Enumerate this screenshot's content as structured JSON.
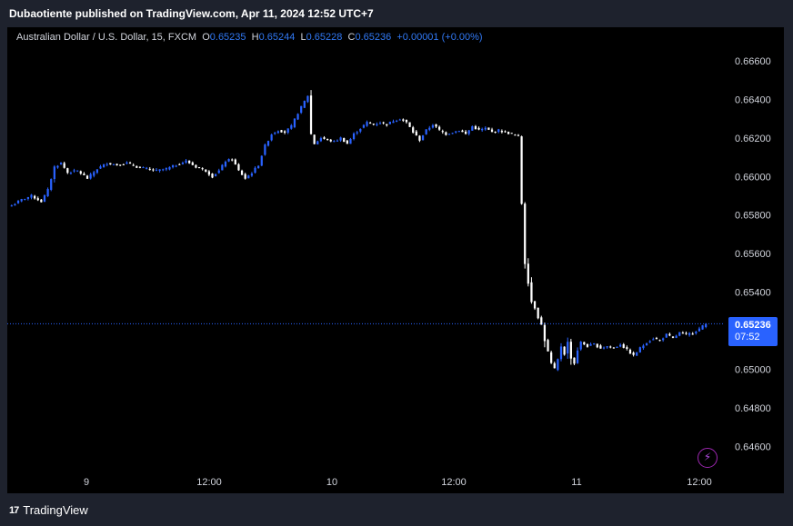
{
  "header": {
    "published_line": "Dubaotiente published on TradingView.com, Apr 11, 2024 12:52 UTC+7"
  },
  "legend": {
    "symbol": "Australian Dollar / U.S. Dollar, 15, FXCM",
    "o_label": "O",
    "o_value": "0.65235",
    "h_label": "H",
    "h_value": "0.65244",
    "l_label": "L",
    "l_value": "0.65228",
    "c_label": "C",
    "c_value": "0.65236",
    "change": "+0.00001 (+0.00%)"
  },
  "price_badge": {
    "price": "0.65236",
    "countdown": "07:52"
  },
  "footer": {
    "brand_mark": "17",
    "brand_name": "TradingView"
  },
  "icons": {
    "alert": "lightning-bolt-icon",
    "logo": "tradingview-logo-icon"
  },
  "colors": {
    "background": "#000000",
    "frame": "#1e222d",
    "candle_up": "#2962ff",
    "candle_down": "#ffffff",
    "badge": "#2962ff",
    "last_price_line": "#2962ff"
  },
  "chart_data": {
    "type": "candlestick",
    "timeframe": "15",
    "x_tick_labels": [
      "9",
      "12:00",
      "10",
      "12:00",
      "11",
      "12:00"
    ],
    "y_tick_labels": [
      "0.66600",
      "0.66400",
      "0.66200",
      "0.66000",
      "0.65800",
      "0.65600",
      "0.65400",
      "0.65200",
      "0.65000",
      "0.64800",
      "0.64600"
    ],
    "ylim": [
      0.6455,
      0.6668
    ],
    "last_price": 0.65236,
    "grid": false,
    "close_path": [
      [
        0,
        0.6585
      ],
      [
        3,
        0.6588
      ],
      [
        6,
        0.659
      ],
      [
        9,
        0.6587
      ],
      [
        11,
        0.6593
      ],
      [
        13,
        0.6605
      ],
      [
        15,
        0.6607
      ],
      [
        17,
        0.6602
      ],
      [
        20,
        0.6603
      ],
      [
        23,
        0.6599
      ],
      [
        26,
        0.6604
      ],
      [
        29,
        0.6607
      ],
      [
        32,
        0.6606
      ],
      [
        35,
        0.6607
      ],
      [
        38,
        0.6605
      ],
      [
        41,
        0.6604
      ],
      [
        44,
        0.6603
      ],
      [
        47,
        0.6604
      ],
      [
        50,
        0.6606
      ],
      [
        53,
        0.6608
      ],
      [
        56,
        0.6605
      ],
      [
        59,
        0.6603
      ],
      [
        61,
        0.66
      ],
      [
        63,
        0.6603
      ],
      [
        65,
        0.6608
      ],
      [
        67,
        0.6609
      ],
      [
        69,
        0.6603
      ],
      [
        71,
        0.6599
      ],
      [
        73,
        0.6602
      ],
      [
        75,
        0.6606
      ],
      [
        77,
        0.6616
      ],
      [
        79,
        0.6622
      ],
      [
        81,
        0.6624
      ],
      [
        83,
        0.6623
      ],
      [
        85,
        0.6626
      ],
      [
        87,
        0.6633
      ],
      [
        89,
        0.6639
      ],
      [
        90,
        0.6642
      ],
      [
        91,
        0.6622
      ],
      [
        92,
        0.6617
      ],
      [
        94,
        0.662
      ],
      [
        96,
        0.6619
      ],
      [
        98,
        0.6618
      ],
      [
        100,
        0.662
      ],
      [
        102,
        0.6617
      ],
      [
        104,
        0.6622
      ],
      [
        106,
        0.6625
      ],
      [
        108,
        0.6628
      ],
      [
        110,
        0.6627
      ],
      [
        112,
        0.6628
      ],
      [
        114,
        0.6627
      ],
      [
        116,
        0.6629
      ],
      [
        118,
        0.663
      ],
      [
        120,
        0.6628
      ],
      [
        122,
        0.6623
      ],
      [
        124,
        0.6619
      ],
      [
        126,
        0.6624
      ],
      [
        128,
        0.6627
      ],
      [
        130,
        0.6624
      ],
      [
        132,
        0.6622
      ],
      [
        134,
        0.6623
      ],
      [
        136,
        0.6624
      ],
      [
        138,
        0.6622
      ],
      [
        140,
        0.6626
      ],
      [
        142,
        0.6624
      ],
      [
        144,
        0.6625
      ],
      [
        146,
        0.6623
      ],
      [
        148,
        0.6624
      ],
      [
        150,
        0.6623
      ],
      [
        152,
        0.6622
      ],
      [
        154,
        0.6621
      ],
      [
        155,
        0.6586
      ],
      [
        156,
        0.6555
      ],
      [
        157,
        0.6545
      ],
      [
        158,
        0.6535
      ],
      [
        159,
        0.6532
      ],
      [
        160,
        0.6527
      ],
      [
        161,
        0.6523
      ],
      [
        162,
        0.6515
      ],
      [
        163,
        0.6509
      ],
      [
        164,
        0.6503
      ],
      [
        165,
        0.65
      ],
      [
        166,
        0.6505
      ],
      [
        167,
        0.6512
      ],
      [
        168,
        0.6508
      ],
      [
        169,
        0.6514
      ],
      [
        170,
        0.6506
      ],
      [
        171,
        0.6503
      ],
      [
        172,
        0.651
      ],
      [
        173,
        0.6514
      ],
      [
        175,
        0.6512
      ],
      [
        177,
        0.6513
      ],
      [
        179,
        0.6511
      ],
      [
        181,
        0.6512
      ],
      [
        183,
        0.6511
      ],
      [
        185,
        0.6513
      ],
      [
        187,
        0.651
      ],
      [
        189,
        0.6507
      ],
      [
        191,
        0.6511
      ],
      [
        193,
        0.6514
      ],
      [
        195,
        0.6516
      ],
      [
        197,
        0.6515
      ],
      [
        199,
        0.6518
      ],
      [
        201,
        0.6516
      ],
      [
        203,
        0.6519
      ],
      [
        205,
        0.6518
      ],
      [
        207,
        0.6519
      ],
      [
        209,
        0.6521
      ],
      [
        211,
        0.65236
      ]
    ]
  }
}
